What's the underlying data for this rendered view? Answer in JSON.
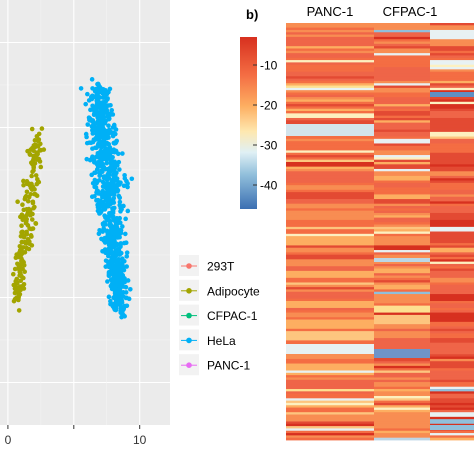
{
  "panel_b_label": "b)",
  "chart_data": [
    {
      "type": "scatter",
      "xticks": [
        {
          "value": 0,
          "label": "0"
        },
        {
          "value": 5,
          "label": ""
        },
        {
          "value": 10,
          "label": "10"
        }
      ],
      "xlim": [
        -0.6,
        12.3
      ],
      "ylim": [
        -10.0,
        10.0
      ],
      "grid": true,
      "legend": {
        "placement": "right",
        "entries": [
          {
            "name": "293T",
            "color": "#f8766d"
          },
          {
            "name": "Adipocyte",
            "color": "#a3a500"
          },
          {
            "name": "CFPAC-1",
            "color": "#00bf7d"
          },
          {
            "name": "HeLa",
            "color": "#00b0f6"
          },
          {
            "name": "PANC-1",
            "color": "#e76bf3"
          }
        ]
      },
      "clusters": [
        {
          "name": "Adipocyte",
          "color": "#a3a500",
          "count": 200,
          "top": [
            2.3,
            3.6
          ],
          "bottom": [
            0.6,
            -4.2
          ],
          "half_width": 0.55
        },
        {
          "name": "HeLa",
          "color": "#00b0f6",
          "count": 850,
          "top": [
            6.9,
            5.8
          ],
          "bottom": [
            8.5,
            -4.5
          ],
          "half_width": 1.05
        }
      ]
    },
    {
      "type": "heatmap",
      "columns": [
        "PANC-1",
        "CFPAC-1",
        ""
      ],
      "colorbar": {
        "min": -46,
        "max": -3,
        "ticks": [
          -10,
          -20,
          -30,
          -40
        ]
      },
      "rows": 180
    }
  ]
}
